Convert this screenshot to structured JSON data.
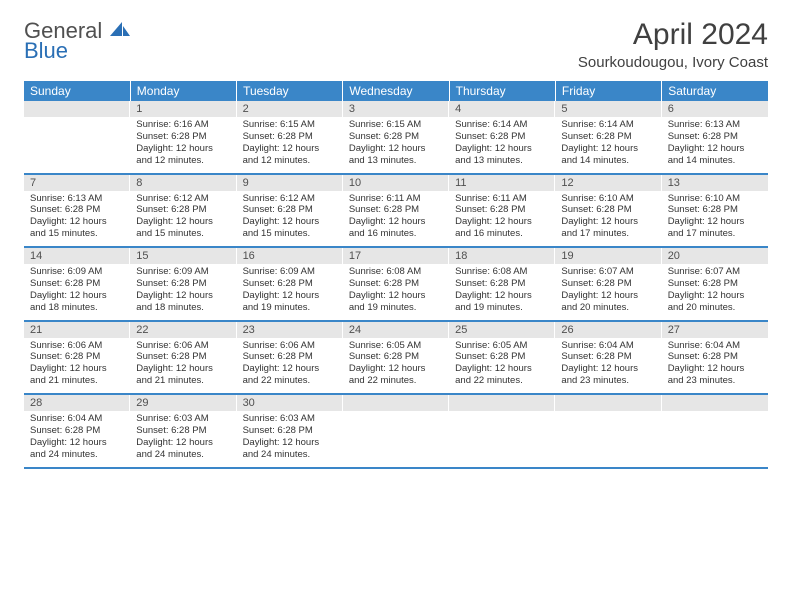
{
  "brand": {
    "word1": "General",
    "word2": "Blue"
  },
  "title": "April 2024",
  "location": "Sourkoudougou, Ivory Coast",
  "colors": {
    "header_bg": "#3a86c8",
    "header_text": "#ffffff",
    "daynum_bg": "#e6e6e6",
    "text": "#333333",
    "row_border": "#3a86c8",
    "brand_grey": "#505050",
    "brand_blue": "#2a6fb5"
  },
  "day_labels": [
    "Sunday",
    "Monday",
    "Tuesday",
    "Wednesday",
    "Thursday",
    "Friday",
    "Saturday"
  ],
  "weeks": [
    [
      {
        "n": "",
        "lines": []
      },
      {
        "n": "1",
        "lines": [
          "Sunrise: 6:16 AM",
          "Sunset: 6:28 PM",
          "Daylight: 12 hours",
          "and 12 minutes."
        ]
      },
      {
        "n": "2",
        "lines": [
          "Sunrise: 6:15 AM",
          "Sunset: 6:28 PM",
          "Daylight: 12 hours",
          "and 12 minutes."
        ]
      },
      {
        "n": "3",
        "lines": [
          "Sunrise: 6:15 AM",
          "Sunset: 6:28 PM",
          "Daylight: 12 hours",
          "and 13 minutes."
        ]
      },
      {
        "n": "4",
        "lines": [
          "Sunrise: 6:14 AM",
          "Sunset: 6:28 PM",
          "Daylight: 12 hours",
          "and 13 minutes."
        ]
      },
      {
        "n": "5",
        "lines": [
          "Sunrise: 6:14 AM",
          "Sunset: 6:28 PM",
          "Daylight: 12 hours",
          "and 14 minutes."
        ]
      },
      {
        "n": "6",
        "lines": [
          "Sunrise: 6:13 AM",
          "Sunset: 6:28 PM",
          "Daylight: 12 hours",
          "and 14 minutes."
        ]
      }
    ],
    [
      {
        "n": "7",
        "lines": [
          "Sunrise: 6:13 AM",
          "Sunset: 6:28 PM",
          "Daylight: 12 hours",
          "and 15 minutes."
        ]
      },
      {
        "n": "8",
        "lines": [
          "Sunrise: 6:12 AM",
          "Sunset: 6:28 PM",
          "Daylight: 12 hours",
          "and 15 minutes."
        ]
      },
      {
        "n": "9",
        "lines": [
          "Sunrise: 6:12 AM",
          "Sunset: 6:28 PM",
          "Daylight: 12 hours",
          "and 15 minutes."
        ]
      },
      {
        "n": "10",
        "lines": [
          "Sunrise: 6:11 AM",
          "Sunset: 6:28 PM",
          "Daylight: 12 hours",
          "and 16 minutes."
        ]
      },
      {
        "n": "11",
        "lines": [
          "Sunrise: 6:11 AM",
          "Sunset: 6:28 PM",
          "Daylight: 12 hours",
          "and 16 minutes."
        ]
      },
      {
        "n": "12",
        "lines": [
          "Sunrise: 6:10 AM",
          "Sunset: 6:28 PM",
          "Daylight: 12 hours",
          "and 17 minutes."
        ]
      },
      {
        "n": "13",
        "lines": [
          "Sunrise: 6:10 AM",
          "Sunset: 6:28 PM",
          "Daylight: 12 hours",
          "and 17 minutes."
        ]
      }
    ],
    [
      {
        "n": "14",
        "lines": [
          "Sunrise: 6:09 AM",
          "Sunset: 6:28 PM",
          "Daylight: 12 hours",
          "and 18 minutes."
        ]
      },
      {
        "n": "15",
        "lines": [
          "Sunrise: 6:09 AM",
          "Sunset: 6:28 PM",
          "Daylight: 12 hours",
          "and 18 minutes."
        ]
      },
      {
        "n": "16",
        "lines": [
          "Sunrise: 6:09 AM",
          "Sunset: 6:28 PM",
          "Daylight: 12 hours",
          "and 19 minutes."
        ]
      },
      {
        "n": "17",
        "lines": [
          "Sunrise: 6:08 AM",
          "Sunset: 6:28 PM",
          "Daylight: 12 hours",
          "and 19 minutes."
        ]
      },
      {
        "n": "18",
        "lines": [
          "Sunrise: 6:08 AM",
          "Sunset: 6:28 PM",
          "Daylight: 12 hours",
          "and 19 minutes."
        ]
      },
      {
        "n": "19",
        "lines": [
          "Sunrise: 6:07 AM",
          "Sunset: 6:28 PM",
          "Daylight: 12 hours",
          "and 20 minutes."
        ]
      },
      {
        "n": "20",
        "lines": [
          "Sunrise: 6:07 AM",
          "Sunset: 6:28 PM",
          "Daylight: 12 hours",
          "and 20 minutes."
        ]
      }
    ],
    [
      {
        "n": "21",
        "lines": [
          "Sunrise: 6:06 AM",
          "Sunset: 6:28 PM",
          "Daylight: 12 hours",
          "and 21 minutes."
        ]
      },
      {
        "n": "22",
        "lines": [
          "Sunrise: 6:06 AM",
          "Sunset: 6:28 PM",
          "Daylight: 12 hours",
          "and 21 minutes."
        ]
      },
      {
        "n": "23",
        "lines": [
          "Sunrise: 6:06 AM",
          "Sunset: 6:28 PM",
          "Daylight: 12 hours",
          "and 22 minutes."
        ]
      },
      {
        "n": "24",
        "lines": [
          "Sunrise: 6:05 AM",
          "Sunset: 6:28 PM",
          "Daylight: 12 hours",
          "and 22 minutes."
        ]
      },
      {
        "n": "25",
        "lines": [
          "Sunrise: 6:05 AM",
          "Sunset: 6:28 PM",
          "Daylight: 12 hours",
          "and 22 minutes."
        ]
      },
      {
        "n": "26",
        "lines": [
          "Sunrise: 6:04 AM",
          "Sunset: 6:28 PM",
          "Daylight: 12 hours",
          "and 23 minutes."
        ]
      },
      {
        "n": "27",
        "lines": [
          "Sunrise: 6:04 AM",
          "Sunset: 6:28 PM",
          "Daylight: 12 hours",
          "and 23 minutes."
        ]
      }
    ],
    [
      {
        "n": "28",
        "lines": [
          "Sunrise: 6:04 AM",
          "Sunset: 6:28 PM",
          "Daylight: 12 hours",
          "and 24 minutes."
        ]
      },
      {
        "n": "29",
        "lines": [
          "Sunrise: 6:03 AM",
          "Sunset: 6:28 PM",
          "Daylight: 12 hours",
          "and 24 minutes."
        ]
      },
      {
        "n": "30",
        "lines": [
          "Sunrise: 6:03 AM",
          "Sunset: 6:28 PM",
          "Daylight: 12 hours",
          "and 24 minutes."
        ]
      },
      {
        "n": "",
        "lines": []
      },
      {
        "n": "",
        "lines": []
      },
      {
        "n": "",
        "lines": []
      },
      {
        "n": "",
        "lines": []
      }
    ]
  ]
}
